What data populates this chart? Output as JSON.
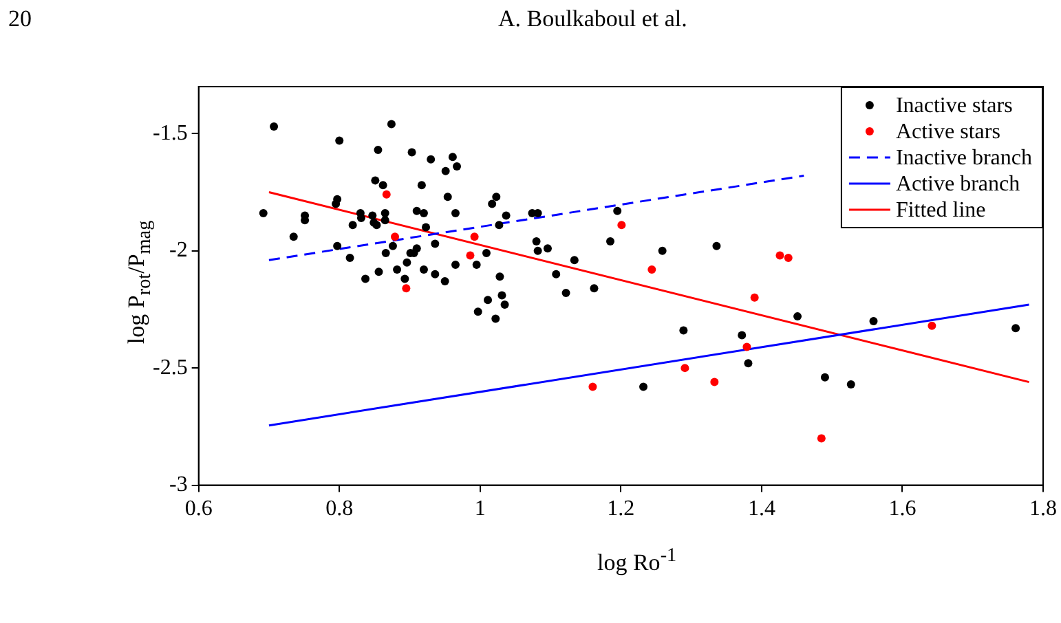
{
  "chart_data": {
    "type": "scatter",
    "annotations": [
      "20",
      "A. Boulkaboul et al."
    ],
    "xlabel": "log Ro$^{-1}$",
    "ylabel": "log P$_{rot}$/P$_{mag}$",
    "xlim": [
      0.6,
      1.8
    ],
    "xticks": [
      0.6,
      0.8,
      1,
      1.2,
      1.4,
      1.6,
      1.8
    ],
    "ylim": [
      -3,
      -1.3
    ],
    "yticks": [
      -3,
      -2.5,
      -2,
      -1.5
    ],
    "grid": false,
    "legend": "top right",
    "series": [
      {
        "name": "Inactive stars",
        "type": "scatter",
        "marker": "circle",
        "color": "#000000",
        "x": [
          0.707,
          0.874,
          0.8,
          0.855,
          0.903,
          0.93,
          0.961,
          0.951,
          0.967,
          0.851,
          0.862,
          0.917,
          0.954,
          1.023,
          1.017,
          0.797,
          0.795,
          0.692,
          0.751,
          0.751,
          0.83,
          0.831,
          0.847,
          0.865,
          0.819,
          0.849,
          0.865,
          0.853,
          0.91,
          0.92,
          0.965,
          1.037,
          1.027,
          0.923,
          0.735,
          0.797,
          0.815,
          0.866,
          0.876,
          0.901,
          0.91,
          0.906,
          0.936,
          0.896,
          0.965,
          0.995,
          1.009,
          0.882,
          0.856,
          0.92,
          0.936,
          0.893,
          0.837,
          0.95,
          1.028,
          1.031,
          1.011,
          1.035,
          0.997,
          1.022,
          1.074,
          1.082,
          1.195,
          1.08,
          1.082,
          1.096,
          1.185,
          1.259,
          1.336,
          1.134,
          1.108,
          1.122,
          1.162,
          1.289,
          1.372,
          1.381,
          1.232,
          1.451,
          1.559,
          1.761,
          1.49,
          1.527
        ],
        "values": [
          -1.47,
          -1.46,
          -1.53,
          -1.57,
          -1.58,
          -1.61,
          -1.6,
          -1.66,
          -1.64,
          -1.7,
          -1.72,
          -1.72,
          -1.77,
          -1.77,
          -1.8,
          -1.78,
          -1.8,
          -1.84,
          -1.85,
          -1.87,
          -1.84,
          -1.86,
          -1.85,
          -1.84,
          -1.89,
          -1.88,
          -1.87,
          -1.89,
          -1.83,
          -1.84,
          -1.84,
          -1.85,
          -1.89,
          -1.9,
          -1.94,
          -1.98,
          -2.03,
          -2.01,
          -1.98,
          -2.01,
          -1.99,
          -2.01,
          -1.97,
          -2.05,
          -2.06,
          -2.06,
          -2.01,
          -2.08,
          -2.09,
          -2.08,
          -2.1,
          -2.12,
          -2.12,
          -2.13,
          -2.11,
          -2.19,
          -2.21,
          -2.23,
          -2.26,
          -2.29,
          -1.84,
          -1.84,
          -1.83,
          -1.96,
          -2.0,
          -1.99,
          -1.96,
          -2.0,
          -1.98,
          -2.04,
          -2.1,
          -2.18,
          -2.16,
          -2.34,
          -2.36,
          -2.48,
          -2.58,
          -2.28,
          -2.3,
          -2.33,
          -2.54,
          -2.57
        ]
      },
      {
        "name": "Active stars",
        "type": "scatter",
        "marker": "circle",
        "color": "#ff0000",
        "x": [
          0.867,
          0.879,
          0.992,
          0.986,
          0.895,
          1.201,
          1.244,
          1.39,
          1.379,
          1.291,
          1.333,
          1.16,
          1.426,
          1.438,
          1.642,
          1.485
        ],
        "values": [
          -1.76,
          -1.94,
          -1.94,
          -2.02,
          -2.16,
          -1.89,
          -2.08,
          -2.2,
          -2.41,
          -2.5,
          -2.56,
          -2.58,
          -2.02,
          -2.03,
          -2.32,
          -2.8
        ]
      },
      {
        "name": "Inactive branch",
        "type": "line",
        "marker": "none",
        "line_style": "dashed",
        "color": "#0000ff",
        "x": [
          0.7,
          1.46
        ],
        "values": [
          -2.04,
          -1.68
        ]
      },
      {
        "name": "Active branch",
        "type": "line",
        "marker": "none",
        "line_style": "solid",
        "color": "#0000ff",
        "x": [
          0.7,
          1.78
        ],
        "values": [
          -2.745,
          -2.23
        ]
      },
      {
        "name": "Fitted line",
        "type": "line",
        "marker": "none",
        "line_style": "solid",
        "color": "#ff0000",
        "x": [
          0.7,
          1.78
        ],
        "values": [
          -1.75,
          -2.56
        ]
      }
    ]
  }
}
